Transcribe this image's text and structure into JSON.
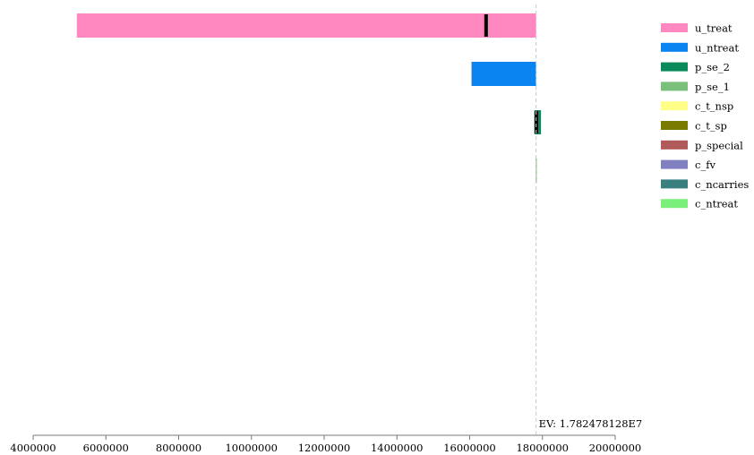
{
  "chart_data": {
    "type": "bar",
    "orientation": "horizontal",
    "xlim": [
      4000000,
      20000000
    ],
    "x_ticks": [
      "4000000",
      "6000000",
      "8000000",
      "10000000",
      "12000000",
      "14000000",
      "16000000",
      "18000000",
      "20000000"
    ],
    "ev": {
      "value": 17824781.28,
      "label": "EV: 1.782478128E7"
    },
    "bars": [
      {
        "name": "u_treat",
        "color": "#ff88c0",
        "from": 5200000,
        "to": 17824781,
        "marker": 16450000
      },
      {
        "name": "u_ntreat",
        "color": "#0a84f0",
        "from": 16050000,
        "to": 17824781
      },
      {
        "name": "p_se_2",
        "color": "#0a8a5a",
        "from": 17780000,
        "to": 17960000,
        "marker": 17830000
      },
      {
        "name": "p_se_1",
        "color": "#7abf7a",
        "from": 17815000,
        "to": 17835000
      }
    ],
    "legend": [
      {
        "label": "u_treat",
        "color": "#ff88c0"
      },
      {
        "label": "u_ntreat",
        "color": "#0a84f0"
      },
      {
        "label": "p_se_2",
        "color": "#0a8a5a"
      },
      {
        "label": "p_se_1",
        "color": "#7abf7a"
      },
      {
        "label": "c_t_nsp",
        "color": "#ffff88"
      },
      {
        "label": "c_t_sp",
        "color": "#7a7a00"
      },
      {
        "label": "p_special",
        "color": "#b05a5a"
      },
      {
        "label": "c_fv",
        "color": "#8080c0"
      },
      {
        "label": "c_ncarries",
        "color": "#3a7f80"
      },
      {
        "label": "c_ntreat",
        "color": "#7af07a"
      }
    ],
    "legend_position": "right"
  }
}
